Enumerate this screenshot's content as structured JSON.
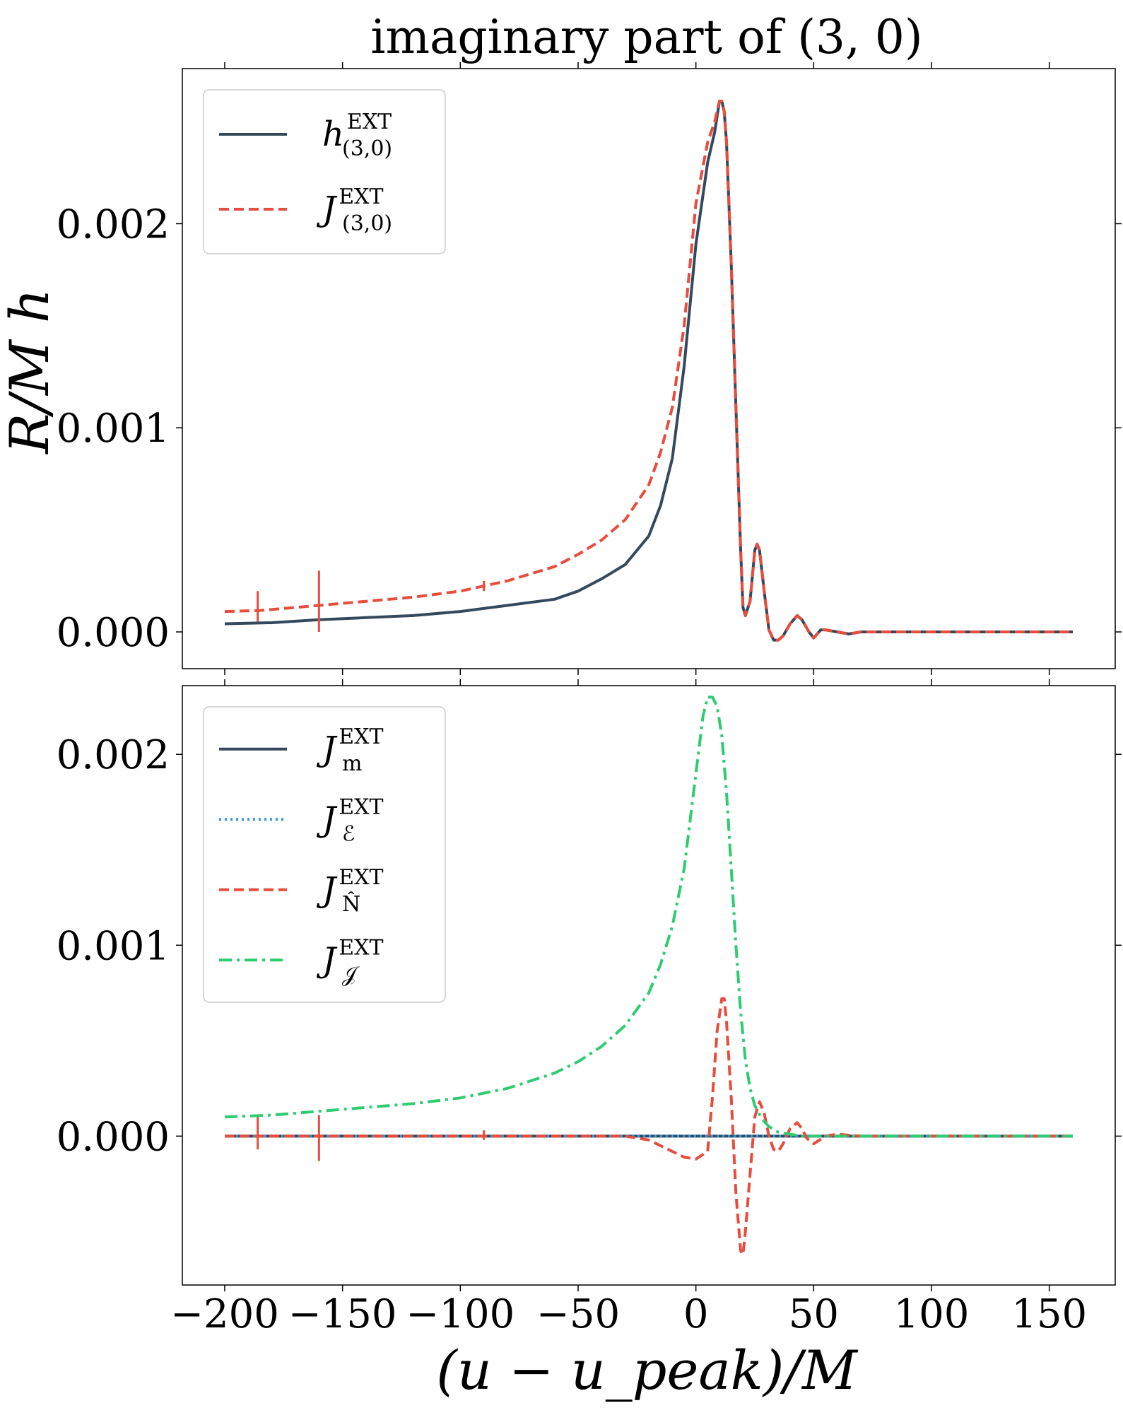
{
  "chart_data": {
    "type": "line",
    "title": "imaginary part of (3, 0)",
    "xlabel": "(u − u_peak)/M",
    "ylabel": "R/M h",
    "xlim": [
      -218,
      178
    ],
    "xticks": [
      -200,
      -150,
      -100,
      -50,
      0,
      50,
      100,
      150
    ],
    "xtick_labels": [
      "−200",
      "−150",
      "−100",
      "−50",
      "0",
      "50",
      "100",
      "150"
    ],
    "panels": [
      {
        "ylim": [
          -0.00018,
          0.00276
        ],
        "yticks": [
          0.0,
          0.001,
          0.002
        ],
        "ytick_labels": [
          "0.000",
          "0.001",
          "0.002"
        ],
        "legend_position": "upper left",
        "series": [
          {
            "name": "h^EXT_(3,0)",
            "legend_base": "h",
            "legend_sup": "EXT",
            "legend_sub": "(3,0)",
            "color": "#34495e",
            "style": "solid",
            "x": [
              -200,
              -180,
              -160,
              -140,
              -120,
              -100,
              -80,
              -60,
              -50,
              -40,
              -30,
              -20,
              -15,
              -10,
              -5,
              0,
              5,
              8,
              10,
              11,
              12,
              13,
              15,
              17,
              19,
              20,
              21,
              23,
              25,
              26,
              27,
              29,
              31,
              33,
              35,
              37,
              40,
              43,
              45,
              48,
              50,
              53,
              55,
              60,
              65,
              70,
              80,
              100,
              130,
              160
            ],
            "y": [
              4e-05,
              4.5e-05,
              6e-05,
              7e-05,
              8e-05,
              0.0001,
              0.00013,
              0.00016,
              0.0002,
              0.00026,
              0.00033,
              0.00047,
              0.00062,
              0.00085,
              0.0013,
              0.0019,
              0.0023,
              0.00245,
              0.0026,
              0.0026,
              0.00255,
              0.0024,
              0.0018,
              0.0011,
              0.0004,
              0.00012,
              8e-05,
              0.00015,
              0.0004,
              0.00043,
              0.0004,
              0.0002,
              1e-05,
              -4e-05,
              -4e-05,
              -2e-05,
              4e-05,
              8e-05,
              6e-05,
              0.0,
              -3e-05,
              1e-05,
              1e-05,
              0.0,
              -1e-05,
              0.0,
              0.0,
              0.0,
              0.0,
              0.0
            ]
          },
          {
            "name": "J^EXT_(3,0)",
            "legend_base": "J",
            "legend_sup": "EXT",
            "legend_sub": "(3,0)",
            "color": "#e74c3c",
            "style": "dashed",
            "x": [
              -200,
              -185,
              -170,
              -160,
              -140,
              -120,
              -100,
              -80,
              -60,
              -50,
              -40,
              -30,
              -20,
              -15,
              -10,
              -5,
              0,
              5,
              8,
              10,
              11,
              12,
              13,
              15,
              17,
              19,
              20,
              21,
              23,
              25,
              26,
              27,
              29,
              31,
              33,
              35,
              37,
              40,
              43,
              45,
              48,
              50,
              53,
              55,
              60,
              65,
              70,
              80,
              100,
              130,
              160
            ],
            "y": [
              0.0001,
              0.000105,
              0.00012,
              0.00013,
              0.00015,
              0.00017,
              0.0002,
              0.00025,
              0.00032,
              0.00038,
              0.00045,
              0.00055,
              0.00072,
              0.00088,
              0.0011,
              0.0015,
              0.0021,
              0.0024,
              0.0025,
              0.0026,
              0.0026,
              0.00255,
              0.0024,
              0.0018,
              0.0011,
              0.0004,
              0.00012,
              8e-05,
              0.00015,
              0.0004,
              0.00043,
              0.0004,
              0.0002,
              1e-05,
              -4e-05,
              -4e-05,
              -2e-05,
              4e-05,
              8e-05,
              6e-05,
              0.0,
              -3e-05,
              1e-05,
              1e-05,
              0.0,
              -1e-05,
              0.0,
              0.0,
              0.0,
              0.0,
              0.0
            ],
            "spikes": [
              {
                "x": -186,
                "ymin": 5e-05,
                "ymax": 0.0002
              },
              {
                "x": -160,
                "ymin": 0.0,
                "ymax": 0.0003
              },
              {
                "x": -90,
                "ymin": 0.0002,
                "ymax": 0.00025
              }
            ]
          }
        ]
      },
      {
        "ylim": [
          -0.00078,
          0.00236
        ],
        "yticks": [
          0.0,
          0.001,
          0.002
        ],
        "ytick_labels": [
          "0.000",
          "0.001",
          "0.002"
        ],
        "legend_position": "upper left",
        "series": [
          {
            "name": "J^EXT_m",
            "legend_base": "J",
            "legend_sup": "EXT",
            "legend_sub": "m",
            "color": "#34495e",
            "style": "solid",
            "x": [
              -200,
              160
            ],
            "y": [
              0.0,
              0.0
            ]
          },
          {
            "name": "J^EXT_ℰ",
            "legend_base": "J",
            "legend_sup": "EXT",
            "legend_sub": "ℰ",
            "color": "#3498db",
            "style": "dotted",
            "x": [
              -200,
              160
            ],
            "y": [
              0.0,
              0.0
            ]
          },
          {
            "name": "J^EXT_N̂",
            "legend_base": "J",
            "legend_sup": "EXT",
            "legend_sub": "N̂",
            "color": "#e74c3c",
            "style": "dashed",
            "x": [
              -200,
              -150,
              -100,
              -50,
              -30,
              -20,
              -15,
              -10,
              -5,
              0,
              5,
              7,
              9,
              11,
              12,
              13,
              15,
              17,
              19,
              20,
              21,
              23,
              25,
              27,
              29,
              31,
              33,
              35,
              37,
              40,
              43,
              45,
              47,
              50,
              55,
              60,
              70,
              80,
              100,
              160
            ],
            "y": [
              0.0,
              0.0,
              0.0,
              0.0,
              0.0,
              -2e-05,
              -5e-05,
              -8e-05,
              -0.00011,
              -0.00012,
              -8e-05,
              0.0002,
              0.00055,
              0.00072,
              0.00072,
              0.0006,
              0.0002,
              -0.0003,
              -0.0006,
              -0.00062,
              -0.0005,
              -0.0002,
              0.0001,
              0.00018,
              0.00012,
              0.0,
              -7e-05,
              -8e-05,
              -4e-05,
              4e-05,
              7e-05,
              4e-05,
              -1e-05,
              -4e-05,
              0.0,
              1e-05,
              0.0,
              0.0,
              0.0,
              0.0
            ],
            "spikes": [
              {
                "x": -186,
                "ymin": -7e-05,
                "ymax": 0.0001
              },
              {
                "x": -160,
                "ymin": -0.00013,
                "ymax": 0.00011
              },
              {
                "x": -90,
                "ymin": -2e-05,
                "ymax": 3e-05
              }
            ]
          },
          {
            "name": "J^EXT_𝒥",
            "legend_base": "J",
            "legend_sup": "EXT",
            "legend_sub": "𝒥",
            "color": "#2ecc71",
            "style": "dashdot",
            "x": [
              -200,
              -180,
              -160,
              -140,
              -120,
              -100,
              -80,
              -60,
              -50,
              -40,
              -30,
              -20,
              -15,
              -10,
              -5,
              0,
              3,
              5,
              7,
              9,
              11,
              13,
              15,
              17,
              19,
              21,
              23,
              25,
              28,
              31,
              35,
              40,
              45,
              50,
              60,
              80,
              100,
              160
            ],
            "y": [
              0.0001,
              0.00011,
              0.00013,
              0.00015,
              0.00017,
              0.0002,
              0.00025,
              0.00033,
              0.00039,
              0.00047,
              0.00058,
              0.00075,
              0.0009,
              0.0011,
              0.0014,
              0.0019,
              0.0022,
              0.0023,
              0.0023,
              0.00225,
              0.0021,
              0.0018,
              0.0014,
              0.001,
              0.00065,
              0.0004,
              0.00025,
              0.00016,
              9e-05,
              5e-05,
              2e-05,
              1e-05,
              0.0,
              0.0,
              0.0,
              0.0,
              0.0,
              0.0
            ]
          }
        ]
      }
    ]
  }
}
